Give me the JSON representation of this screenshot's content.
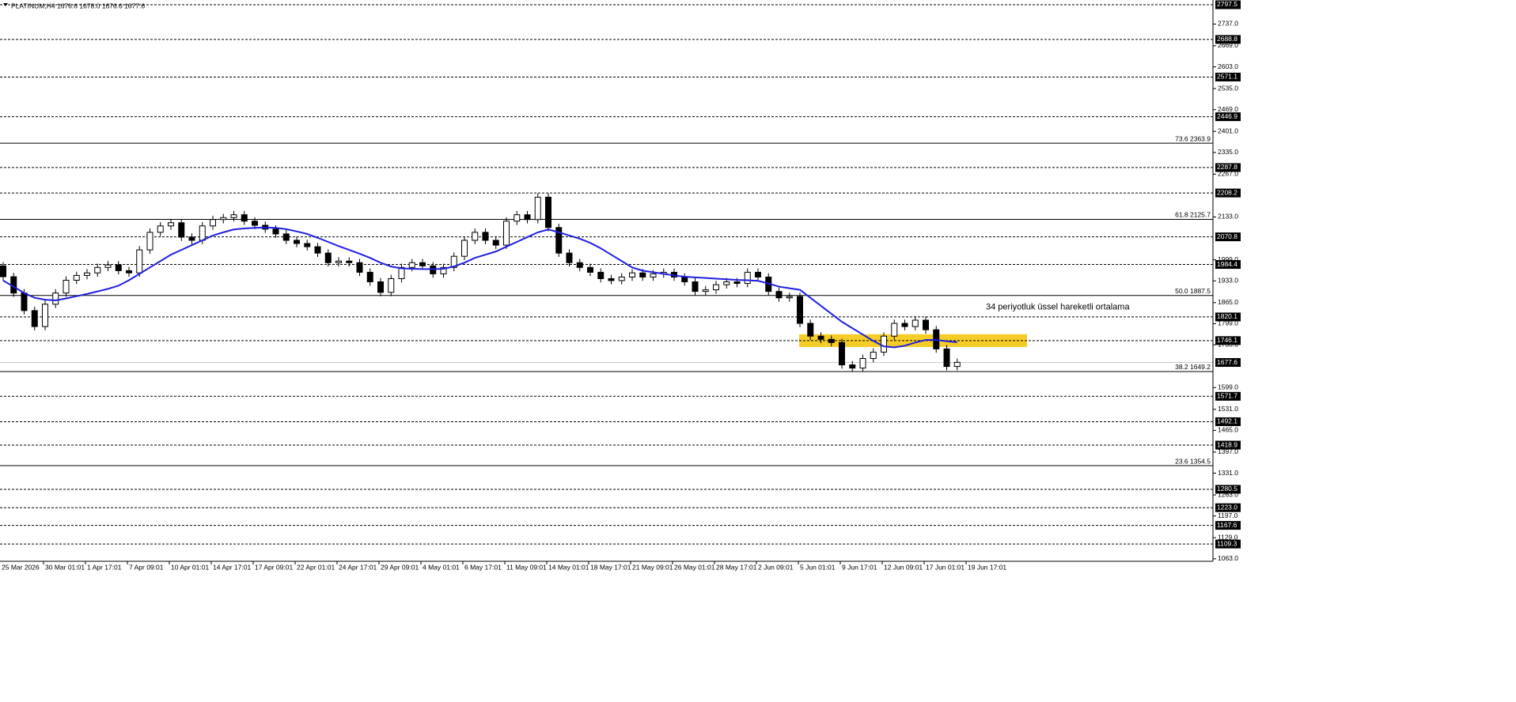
{
  "chart_data": {
    "type": "candlestick",
    "title": "PLATINUM,H4",
    "subtitle": "1676.6 1678.0 1676.6 1677.6",
    "categories": [
      "25 Mar 2026",
      "30 Mar 01:01",
      "1 Apr 17:01",
      "7 Apr 09:01",
      "10 Apr 01:01",
      "14 Apr 17:01",
      "17 Apr 09:01",
      "22 Apr 01:01",
      "24 Apr 17:01",
      "29 Apr 09:01",
      "4 May 01:01",
      "6 May 17:01",
      "11 May 09:01",
      "14 May 01:01",
      "18 May 17:01",
      "21 May 09:01",
      "26 May 01:01",
      "28 May 17:01",
      "2 Jun 09:01",
      "5 Jun 01:01",
      "9 Jun 17:01",
      "12 Jun 09:01",
      "17 Jun 01:01",
      "19 Jun 17:01"
    ],
    "open": [
      1980,
      1946,
      1895,
      1840,
      1790,
      1860,
      1895,
      1935,
      1950,
      1958,
      1975,
      1983,
      1965,
      1958,
      2030,
      2085,
      2105,
      2115,
      2070,
      2060,
      2105,
      2125,
      2131,
      2140,
      2120,
      2107,
      2095,
      2080,
      2060,
      2050,
      2040,
      2020,
      1990,
      1995,
      1990,
      1960,
      1930,
      1897,
      1940,
      1975,
      1990,
      1980,
      1955,
      1975,
      2010,
      2060,
      2085,
      2060,
      2045,
      2120,
      2140,
      2125,
      2195,
      2100,
      2020,
      1990,
      1975,
      1960,
      1940,
      1934,
      1945,
      1958,
      1945,
      1955,
      1960,
      1945,
      1930,
      1900,
      1905,
      1921,
      1930,
      1925,
      1960,
      1945,
      1900,
      1880,
      1884,
      1800,
      1760,
      1750,
      1740,
      1670,
      1660,
      1690,
      1710,
      1760,
      1800,
      1790,
      1810,
      1780,
      1720,
      1665
    ],
    "high": [
      1992,
      1958,
      1907,
      1852,
      1872,
      1907,
      1947,
      1962,
      1970,
      1987,
      1995,
      1995,
      1977,
      2042,
      2097,
      2117,
      2127,
      2127,
      2082,
      2117,
      2137,
      2143,
      2152,
      2152,
      2132,
      2119,
      2107,
      2092,
      2072,
      2062,
      2052,
      2032,
      2007,
      2007,
      2002,
      1972,
      1942,
      1952,
      1987,
      2002,
      2002,
      1992,
      1987,
      2022,
      2072,
      2097,
      2097,
      2072,
      2132,
      2152,
      2152,
      2207,
      2207,
      2112,
      2032,
      2002,
      1987,
      1972,
      1952,
      1957,
      1970,
      1970,
      1967,
      1972,
      1972,
      1957,
      1942,
      1917,
      1933,
      1942,
      1942,
      1972,
      1972,
      1957,
      1912,
      1896,
      1896,
      1812,
      1772,
      1762,
      1752,
      1682,
      1702,
      1722,
      1772,
      1812,
      1812,
      1822,
      1822,
      1792,
      1732,
      1690
    ],
    "low": [
      1934,
      1883,
      1828,
      1778,
      1778,
      1848,
      1883,
      1923,
      1938,
      1946,
      1963,
      1953,
      1946,
      1946,
      2018,
      2073,
      2093,
      2058,
      2048,
      2048,
      2093,
      2113,
      2119,
      2108,
      2095,
      2083,
      2068,
      2048,
      2038,
      2028,
      2008,
      1978,
      1978,
      1978,
      1948,
      1918,
      1885,
      1885,
      1928,
      1963,
      1968,
      1943,
      1943,
      1963,
      1998,
      2048,
      2048,
      2033,
      2033,
      2108,
      2113,
      2113,
      2088,
      2008,
      1978,
      1963,
      1948,
      1928,
      1922,
      1922,
      1933,
      1933,
      1933,
      1943,
      1933,
      1918,
      1888,
      1888,
      1893,
      1909,
      1913,
      1913,
      1933,
      1888,
      1868,
      1868,
      1788,
      1748,
      1738,
      1728,
      1658,
      1648,
      1648,
      1678,
      1698,
      1748,
      1778,
      1778,
      1768,
      1708,
      1653,
      1653
    ],
    "close": [
      1946,
      1895,
      1840,
      1790,
      1860,
      1895,
      1935,
      1950,
      1958,
      1975,
      1983,
      1965,
      1958,
      2030,
      2085,
      2105,
      2115,
      2070,
      2060,
      2105,
      2125,
      2131,
      2140,
      2120,
      2107,
      2095,
      2080,
      2060,
      2050,
      2040,
      2020,
      1990,
      1995,
      1990,
      1960,
      1930,
      1897,
      1940,
      1975,
      1990,
      1980,
      1955,
      1975,
      2010,
      2060,
      2085,
      2060,
      2045,
      2120,
      2140,
      2125,
      2195,
      2100,
      2020,
      1990,
      1975,
      1960,
      1940,
      1934,
      1945,
      1958,
      1945,
      1955,
      1960,
      1945,
      1930,
      1900,
      1905,
      1921,
      1930,
      1925,
      1960,
      1945,
      1900,
      1880,
      1884,
      1800,
      1760,
      1750,
      1740,
      1670,
      1660,
      1690,
      1710,
      1760,
      1800,
      1790,
      1810,
      1780,
      1720,
      1665,
      1678
    ],
    "ema": {
      "color": "#1f1fe0",
      "values": [
        1934,
        1915,
        1895,
        1880,
        1874,
        1872,
        1878,
        1885,
        1892,
        1900,
        1908,
        1918,
        1935,
        1955,
        1975,
        1995,
        2015,
        2030,
        2045,
        2060,
        2075,
        2085,
        2094,
        2097,
        2099,
        2100,
        2099,
        2095,
        2088,
        2080,
        2068,
        2055,
        2042,
        2030,
        2018,
        2005,
        1990,
        1978,
        1972,
        1971,
        1970,
        1970,
        1971,
        1978,
        1990,
        2005,
        2015,
        2025,
        2040,
        2055,
        2070,
        2085,
        2094,
        2085,
        2075,
        2065,
        2052,
        2035,
        2015,
        1995,
        1975,
        1965,
        1960,
        1955,
        1950,
        1946,
        1944,
        1942,
        1940,
        1938,
        1936,
        1935,
        1933,
        1925,
        1915,
        1910,
        1905,
        1880,
        1855,
        1830,
        1805,
        1785,
        1765,
        1745,
        1728,
        1725,
        1730,
        1740,
        1748,
        1748,
        1744,
        1741
      ]
    },
    "annotation": "34 periyotluk üssel hareketli ortalama",
    "annotation_color": "#1f1fe0",
    "zone": {
      "ylim": [
        1726,
        1766
      ],
      "color": "#f5c400"
    },
    "levels": [
      2797.5,
      2688.8,
      2571.1,
      2446.9,
      2287.8,
      2208.2,
      2070.8,
      1984.4,
      1820.1,
      1746.1,
      {
        "value": 1677.6,
        "label": "1677.6",
        "color": "#c8c8c8"
      },
      1571.7,
      1492.1,
      1418.9,
      1280.5,
      {
        "value": 1223,
        "label": "1223.0"
      },
      1167.6,
      1109.3
    ],
    "fib_levels": [
      {
        "value": 2363.9,
        "label": "73.6 2363.9"
      },
      {
        "value": 2125.7,
        "label": "61.8 2125.7"
      },
      {
        "value": 1887.5,
        "label": "50.0 1887.5"
      },
      {
        "value": 1649.2,
        "label": "38.2 1649.2"
      },
      {
        "value": 1354.5,
        "label": "23.6 1354.5"
      }
    ],
    "ylim": [
      1055.2,
      2812.3
    ],
    "yticks": [
      {
        "value": 2737,
        "label": "2737.0"
      },
      {
        "value": 2669,
        "label": "2669.0"
      },
      {
        "value": 2603,
        "label": "2603.0"
      },
      {
        "value": 2535,
        "label": "2535.0"
      },
      {
        "value": 2469,
        "label": "2469.0"
      },
      {
        "value": 2401,
        "label": "2401.0"
      },
      {
        "value": 2335,
        "label": "2335.0"
      },
      {
        "value": 2267,
        "label": "2267.0"
      },
      {
        "value": 2133,
        "label": "2133.0"
      },
      {
        "value": 1999,
        "label": "1999.0"
      },
      {
        "value": 1933,
        "label": "1933.0"
      },
      {
        "value": 1865,
        "label": "1865.0"
      },
      {
        "value": 1799,
        "label": "1799.0"
      },
      {
        "value": 1733,
        "label": "1733.0"
      },
      {
        "value": 1599,
        "label": "1599.0"
      },
      {
        "value": 1531,
        "label": "1531.0"
      },
      {
        "value": 1465,
        "label": "1465.0"
      },
      {
        "value": 1397,
        "label": "1397.0"
      },
      {
        "value": 1331,
        "label": "1331.0"
      },
      {
        "value": 1263,
        "label": "1263.0"
      },
      {
        "value": 1197,
        "label": "1197.0"
      },
      {
        "value": 1129,
        "label": "1129.0"
      },
      {
        "value": 1063,
        "label": "1063.0"
      }
    ]
  }
}
